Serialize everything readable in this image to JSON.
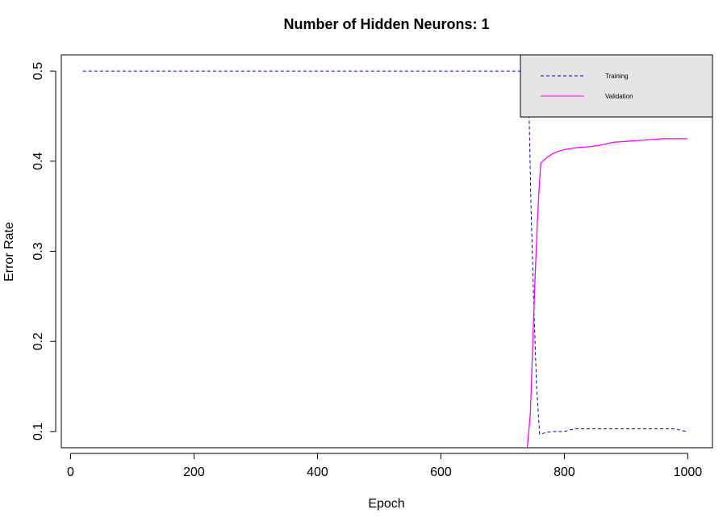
{
  "chart_data": {
    "type": "line",
    "title": "Number of Hidden Neurons: 1",
    "xlabel": "Epoch",
    "ylabel": "Error Rate",
    "xlim": [
      -15,
      1040
    ],
    "ylim": [
      0.082,
      0.518
    ],
    "xticks": [
      0,
      200,
      400,
      600,
      800,
      1000
    ],
    "yticks": [
      0.1,
      0.2,
      0.3,
      0.4,
      0.5
    ],
    "xtick_labels": [
      "0",
      "200",
      "400",
      "600",
      "800",
      "1000"
    ],
    "ytick_labels": [
      "0.1",
      "0.2",
      "0.3",
      "0.4",
      "0.5"
    ],
    "grid": false,
    "legend_position": "top-right",
    "series": [
      {
        "name": "Training",
        "color": "#0000cd",
        "line_style": "dashed",
        "x": [
          20,
          100,
          200,
          300,
          400,
          500,
          600,
          700,
          735,
          740,
          743,
          746,
          750,
          755,
          760,
          762,
          770,
          780,
          790,
          800,
          810,
          820,
          840,
          860,
          880,
          900,
          920,
          940,
          960,
          980,
          990,
          1000
        ],
        "y": [
          0.5,
          0.5,
          0.5,
          0.5,
          0.5,
          0.5,
          0.5,
          0.5,
          0.5,
          0.49,
          0.45,
          0.35,
          0.25,
          0.15,
          0.097,
          0.097,
          0.099,
          0.1,
          0.1,
          0.1,
          0.102,
          0.103,
          0.103,
          0.103,
          0.103,
          0.103,
          0.103,
          0.103,
          0.103,
          0.103,
          0.101,
          0.1
        ]
      },
      {
        "name": "Validation",
        "color": "#ff00ff",
        "line_style": "solid",
        "x": [
          740,
          745,
          748,
          752,
          756,
          760,
          762,
          765,
          770,
          780,
          790,
          800,
          820,
          840,
          860,
          880,
          900,
          920,
          940,
          960,
          980,
          1000
        ],
        "y": [
          0.082,
          0.12,
          0.18,
          0.26,
          0.33,
          0.38,
          0.398,
          0.4,
          0.403,
          0.408,
          0.411,
          0.413,
          0.415,
          0.416,
          0.418,
          0.421,
          0.422,
          0.423,
          0.424,
          0.425,
          0.425,
          0.425
        ]
      }
    ]
  },
  "colors": {
    "legend_background": "#e5e5e5",
    "axis": "#000000"
  }
}
